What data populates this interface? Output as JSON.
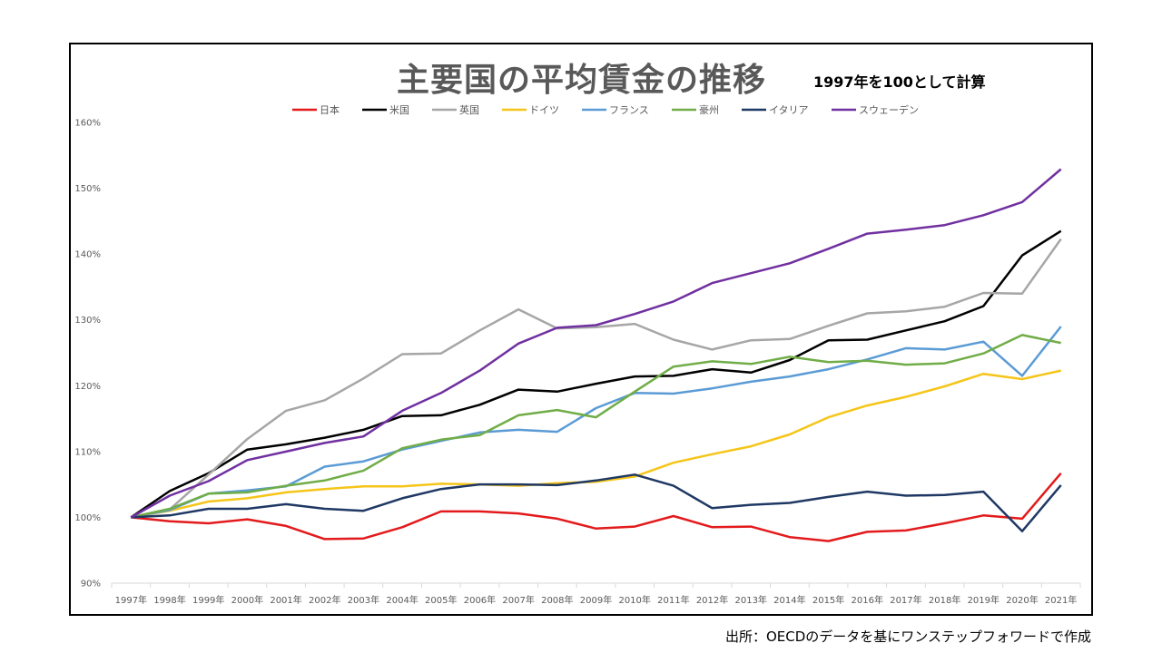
{
  "chart_data": {
    "type": "line",
    "title": "主要国の平均賃金の推移",
    "subtitle": "1997年を100として計算",
    "source_note": "出所：OECDのデータを基にワンステップフォワードで作成",
    "x": [
      "1997年",
      "1998年",
      "1999年",
      "2000年",
      "2001年",
      "2002年",
      "2003年",
      "2004年",
      "2005年",
      "2006年",
      "2007年",
      "2008年",
      "2009年",
      "2010年",
      "2011年",
      "2012年",
      "2013年",
      "2014年",
      "2015年",
      "2016年",
      "2017年",
      "2018年",
      "2019年",
      "2020年",
      "2021年"
    ],
    "y_ticks": [
      "90%",
      "100%",
      "110%",
      "120%",
      "130%",
      "140%",
      "150%",
      "160%"
    ],
    "ylim": [
      90,
      160
    ],
    "grid": false,
    "legend_position": "top",
    "series": [
      {
        "name": "日本",
        "color": "#e31a1c",
        "values": [
          100,
          99.4,
          99.1,
          99.7,
          98.7,
          96.7,
          96.8,
          98.5,
          100.9,
          100.9,
          100.6,
          99.8,
          98.3,
          98.6,
          100.2,
          98.5,
          98.6,
          97.0,
          96.4,
          97.8,
          98.0,
          99.1,
          100.3,
          99.8,
          106.7
        ]
      },
      {
        "name": "米国",
        "color": "#000000",
        "values": [
          100,
          104,
          106.7,
          110.3,
          111.1,
          112.1,
          113.3,
          115.4,
          115.5,
          117.1,
          119.4,
          119.1,
          120.3,
          121.4,
          121.5,
          122.5,
          122.0,
          123.9,
          126.9,
          127.0,
          128.4,
          129.8,
          132.1,
          139.8,
          143.5
        ]
      },
      {
        "name": "英国",
        "color": "#a6a6a6",
        "values": [
          100,
          101.2,
          106.5,
          111.9,
          116.2,
          117.8,
          121.1,
          124.8,
          124.9,
          128.4,
          131.6,
          128.7,
          128.9,
          129.4,
          127.0,
          125.5,
          126.9,
          127.1,
          129.1,
          131.0,
          131.3,
          132.0,
          134.1,
          134.0,
          142.3
        ]
      },
      {
        "name": "ドイツ",
        "color": "#f5c518",
        "values": [
          100,
          101,
          102.4,
          102.9,
          103.8,
          104.3,
          104.7,
          104.7,
          105.1,
          105.0,
          104.8,
          105.2,
          105.4,
          106.2,
          108.3,
          109.6,
          110.8,
          112.6,
          115.2,
          117.0,
          118.3,
          119.9,
          121.8,
          121.0,
          122.3
        ]
      },
      {
        "name": "フランス",
        "color": "#5b9bd5",
        "values": [
          100,
          101.1,
          103.6,
          104.1,
          104.7,
          107.7,
          108.5,
          110.3,
          111.6,
          112.9,
          113.3,
          113.0,
          116.6,
          118.9,
          118.8,
          119.6,
          120.6,
          121.4,
          122.5,
          124.0,
          125.7,
          125.5,
          126.7,
          121.5,
          129.0
        ]
      },
      {
        "name": "豪州",
        "color": "#70ad47",
        "values": [
          100,
          101.3,
          103.6,
          103.8,
          104.8,
          105.6,
          107.1,
          110.5,
          111.8,
          112.5,
          115.5,
          116.3,
          115.2,
          119.1,
          122.9,
          123.7,
          123.3,
          124.4,
          123.6,
          123.8,
          123.2,
          123.4,
          124.9,
          127.7,
          126.5
        ]
      },
      {
        "name": "イタリア",
        "color": "#1f3864",
        "values": [
          100,
          100.3,
          101.3,
          101.3,
          102.0,
          101.3,
          101.0,
          102.9,
          104.3,
          105.0,
          105.0,
          104.9,
          105.6,
          106.5,
          104.8,
          101.4,
          101.9,
          102.2,
          103.1,
          103.9,
          103.3,
          103.4,
          103.9,
          97.9,
          104.9
        ]
      },
      {
        "name": "スウェーデン",
        "color": "#7030a0",
        "values": [
          100,
          103.3,
          105.5,
          108.7,
          110.0,
          111.3,
          112.3,
          116.2,
          118.9,
          122.3,
          126.4,
          128.8,
          129.2,
          130.9,
          132.8,
          135.6,
          137.1,
          138.6,
          140.8,
          143.1,
          143.7,
          144.4,
          145.9,
          147.9,
          152.9
        ]
      }
    ]
  }
}
